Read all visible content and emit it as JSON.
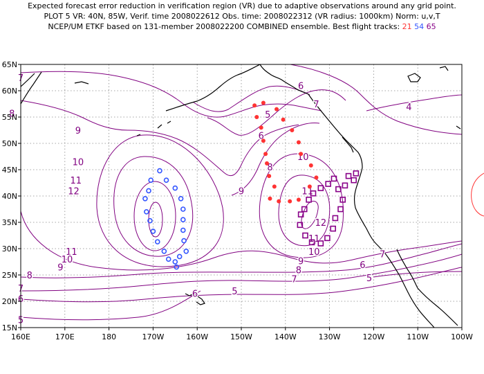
{
  "title": {
    "line1": "Expected forecast error reduction in verification region (VR) due to adaptive observations around any grid point.",
    "line2": "PLOT 5 VR: 40N, 85W, Verif. time 2008022612 Obs. time: 2008022312 (VR radius: 1000km) Norm: u,v,T",
    "line3_prefix": "NCEP/UM ETKF based on 131-member 2008022200 COMBINED ensemble.  Best flight tracks:",
    "track_ids": [
      "21",
      "54",
      "65"
    ]
  },
  "colors": {
    "contour": "#800080",
    "track_21": "#ff3333",
    "track_54": "#3355ff",
    "track_65": "#880088",
    "coast": "#000000",
    "grid": "#888888"
  },
  "axes": {
    "x_labels": [
      "160E",
      "170E",
      "180",
      "170W",
      "160W",
      "150W",
      "140W",
      "130W",
      "120W",
      "110W",
      "100W"
    ],
    "y_labels": [
      "15N",
      "20N",
      "25N",
      "30N",
      "35N",
      "40N",
      "45N",
      "50N",
      "55N",
      "60N",
      "65N"
    ]
  },
  "contour_labels": [
    {
      "text": "7",
      "lon": 160,
      "lat": 62.5
    },
    {
      "text": "8",
      "lon": 158,
      "lat": 55.7
    },
    {
      "text": "9",
      "lon": 173,
      "lat": 52.5
    },
    {
      "text": "10",
      "lon": 173,
      "lat": 46.5
    },
    {
      "text": "11",
      "lon": 172.5,
      "lat": 43
    },
    {
      "text": "12",
      "lon": 172,
      "lat": 41
    },
    {
      "text": "11",
      "lon": 171.5,
      "lat": 29.5
    },
    {
      "text": "10",
      "lon": 170.5,
      "lat": 28
    },
    {
      "text": "9",
      "lon": 169,
      "lat": 26.5
    },
    {
      "text": "8",
      "lon": 162,
      "lat": 25
    },
    {
      "text": "7",
      "lon": 160,
      "lat": 22.5
    },
    {
      "text": "6",
      "lon": 160,
      "lat": 20.5
    },
    {
      "text": "5",
      "lon": 160,
      "lat": 16.5
    },
    {
      "text": "5",
      "lon": 208.5,
      "lat": 22
    },
    {
      "text": "5",
      "lon": 216,
      "lat": 55.5
    },
    {
      "text": "6",
      "lon": 214.5,
      "lat": 51.5
    },
    {
      "text": "8",
      "lon": 216.5,
      "lat": 45.5
    },
    {
      "text": "9",
      "lon": 210,
      "lat": 41
    },
    {
      "text": "6",
      "lon": 223.5,
      "lat": 61
    },
    {
      "text": "7",
      "lon": 227,
      "lat": 57.5
    },
    {
      "text": "4",
      "lon": 248,
      "lat": 57
    },
    {
      "text": "10",
      "lon": 224,
      "lat": 47.5
    },
    {
      "text": "11",
      "lon": 225,
      "lat": 41
    },
    {
      "text": "12",
      "lon": 228,
      "lat": 35
    },
    {
      "text": "11",
      "lon": 226.5,
      "lat": 32
    },
    {
      "text": "10",
      "lon": 226.5,
      "lat": 29.5
    },
    {
      "text": "9",
      "lon": 223.5,
      "lat": 27.7
    },
    {
      "text": "8",
      "lon": 223,
      "lat": 26
    },
    {
      "text": "7",
      "lon": 222,
      "lat": 24.3
    },
    {
      "text": "6",
      "lon": 199.5,
      "lat": 21.5
    },
    {
      "text": "6",
      "lon": 237.5,
      "lat": 27
    },
    {
      "text": "5",
      "lon": 239,
      "lat": 24.5
    },
    {
      "text": "7",
      "lon": 242,
      "lat": 29
    }
  ],
  "track_21": [
    {
      "lon": 213,
      "lat": 57.2
    },
    {
      "lon": 215,
      "lat": 57.7
    },
    {
      "lon": 213.5,
      "lat": 55
    },
    {
      "lon": 214.5,
      "lat": 53
    },
    {
      "lon": 215,
      "lat": 50.5
    },
    {
      "lon": 215.5,
      "lat": 48
    },
    {
      "lon": 215.8,
      "lat": 46.2
    },
    {
      "lon": 216.3,
      "lat": 43.8
    },
    {
      "lon": 217.5,
      "lat": 41.8
    },
    {
      "lon": 216.5,
      "lat": 39.5
    },
    {
      "lon": 218.5,
      "lat": 39
    },
    {
      "lon": 221,
      "lat": 39
    },
    {
      "lon": 223,
      "lat": 39.3
    },
    {
      "lon": 225.5,
      "lat": 41.8
    },
    {
      "lon": 227,
      "lat": 43.5
    },
    {
      "lon": 225.8,
      "lat": 45.8
    },
    {
      "lon": 223.5,
      "lat": 48
    },
    {
      "lon": 223,
      "lat": 50.2
    },
    {
      "lon": 221.5,
      "lat": 52.5
    },
    {
      "lon": 219.5,
      "lat": 54.5
    },
    {
      "lon": 218,
      "lat": 56.5
    }
  ],
  "track_54": [
    {
      "lon": 195,
      "lat": 27.5
    },
    {
      "lon": 196,
      "lat": 28.5
    },
    {
      "lon": 197.5,
      "lat": 29.5
    },
    {
      "lon": 197,
      "lat": 31.5
    },
    {
      "lon": 196.8,
      "lat": 33.5
    },
    {
      "lon": 196.8,
      "lat": 35.5
    },
    {
      "lon": 196.8,
      "lat": 37.5
    },
    {
      "lon": 196.3,
      "lat": 39.5
    },
    {
      "lon": 195,
      "lat": 41.5
    },
    {
      "lon": 193,
      "lat": 43
    },
    {
      "lon": 191.5,
      "lat": 44.8
    },
    {
      "lon": 189.5,
      "lat": 43
    },
    {
      "lon": 189,
      "lat": 41
    },
    {
      "lon": 188.2,
      "lat": 39.5
    },
    {
      "lon": 188.5,
      "lat": 37
    },
    {
      "lon": 189.3,
      "lat": 35.3
    },
    {
      "lon": 190,
      "lat": 33.3
    },
    {
      "lon": 191,
      "lat": 31.3
    },
    {
      "lon": 192.5,
      "lat": 29.5
    },
    {
      "lon": 193.5,
      "lat": 28
    },
    {
      "lon": 195.3,
      "lat": 26.5
    }
  ],
  "track_65": [
    {
      "lon": 236,
      "lat": 44.3
    },
    {
      "lon": 235.5,
      "lat": 43
    },
    {
      "lon": 233.5,
      "lat": 42
    },
    {
      "lon": 232,
      "lat": 41.3
    },
    {
      "lon": 233,
      "lat": 39.3
    },
    {
      "lon": 232.5,
      "lat": 37.5
    },
    {
      "lon": 231.3,
      "lat": 35.8
    },
    {
      "lon": 230.8,
      "lat": 33.8
    },
    {
      "lon": 229.5,
      "lat": 32
    },
    {
      "lon": 228,
      "lat": 31
    },
    {
      "lon": 226,
      "lat": 31.2
    },
    {
      "lon": 224.5,
      "lat": 32.5
    },
    {
      "lon": 223.3,
      "lat": 34.5
    },
    {
      "lon": 223.5,
      "lat": 36.5
    },
    {
      "lon": 224.3,
      "lat": 37.5
    },
    {
      "lon": 225.3,
      "lat": 39.3
    },
    {
      "lon": 226.3,
      "lat": 40.5
    },
    {
      "lon": 228,
      "lat": 41.5
    },
    {
      "lon": 229.7,
      "lat": 42.3
    },
    {
      "lon": 231,
      "lat": 43.3
    },
    {
      "lon": 234.3,
      "lat": 43.8
    }
  ]
}
